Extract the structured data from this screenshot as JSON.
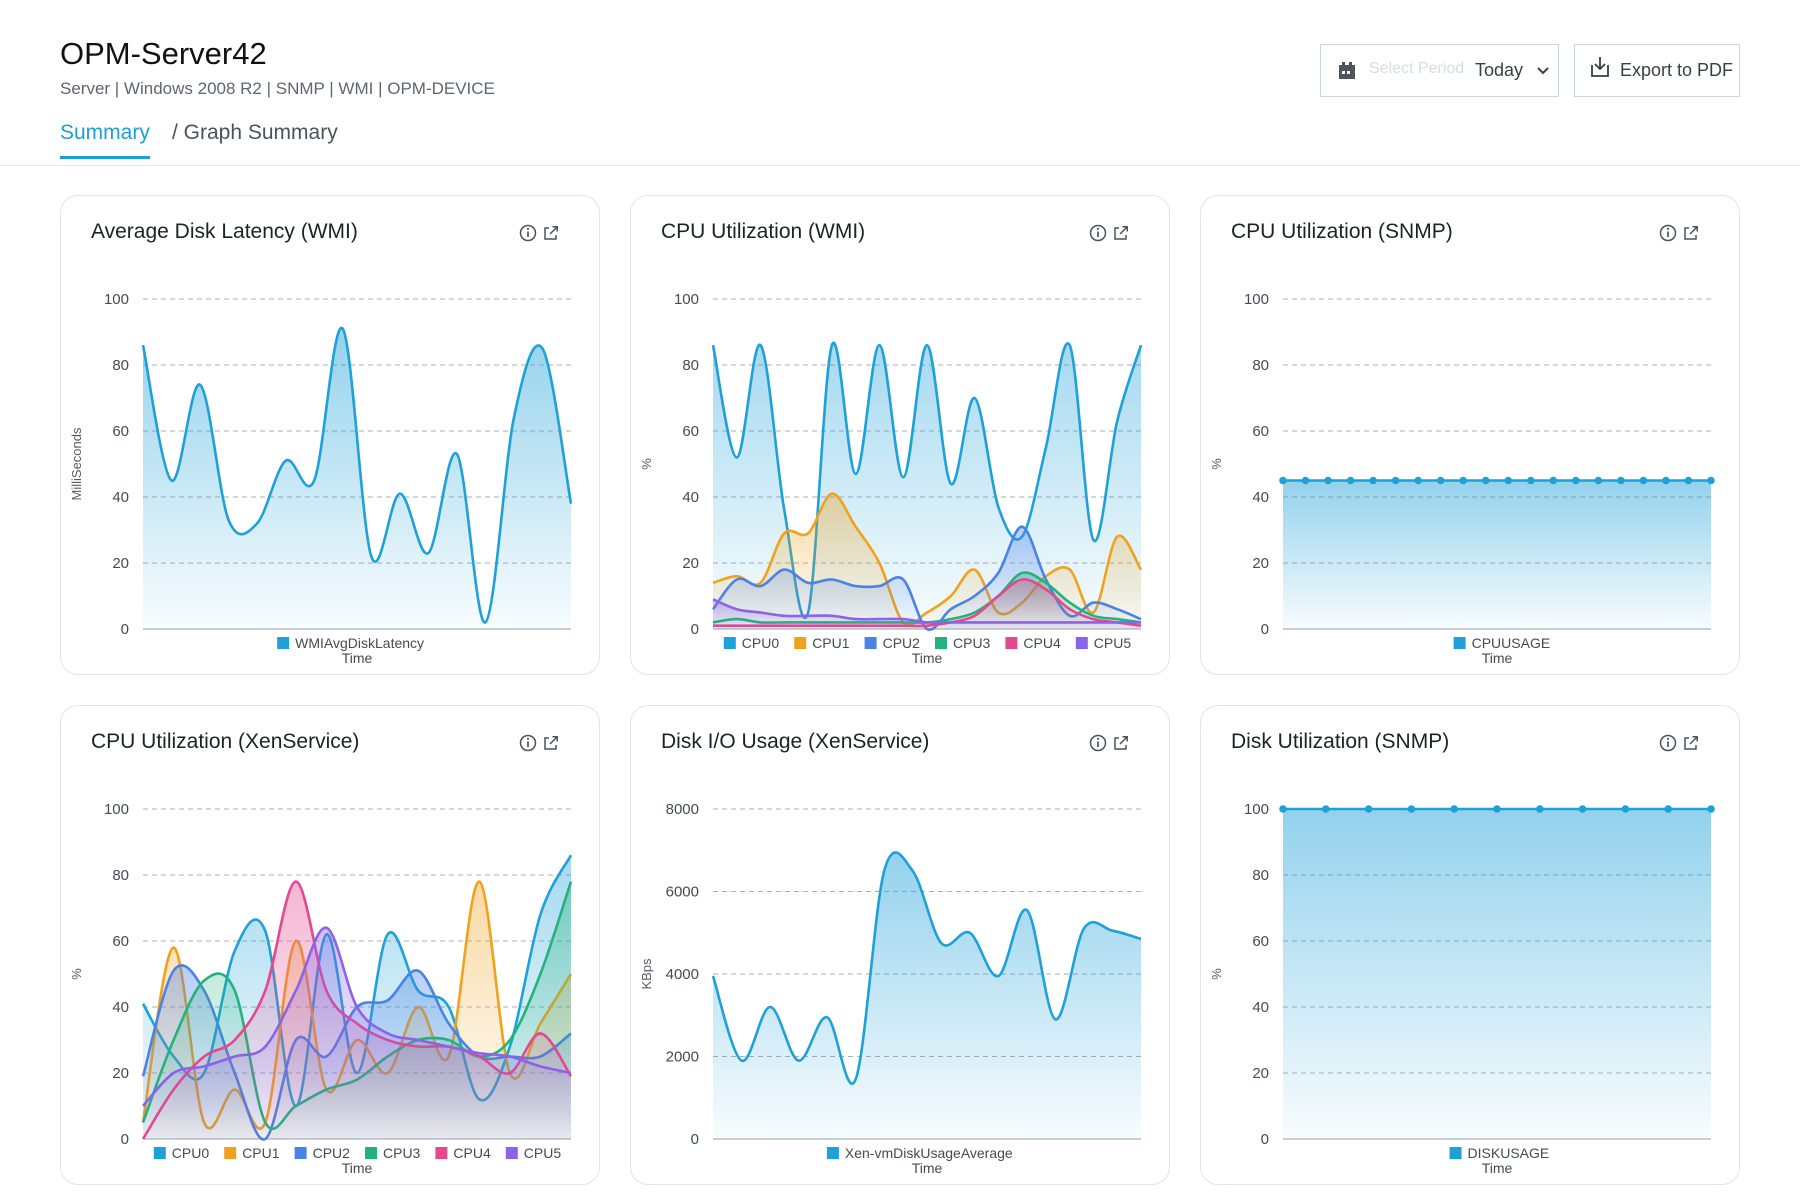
{
  "header": {
    "title": "OPM-Server42",
    "subtitle": "Server | Windows 2008 R2 | SNMP | WMI | OPM-DEVICE",
    "tabs": [
      {
        "label": "Summary",
        "active": true
      },
      {
        "label": "/ Graph Summary",
        "active": false
      }
    ],
    "period": {
      "placeholder": "Select Period",
      "value": "Today"
    },
    "export_label": "Export to PDF"
  },
  "colors": {
    "accent": "#1a9fd6",
    "series": [
      "#1ea0d8",
      "#f0a21e",
      "#4a82e6",
      "#22b37c",
      "#e4488f",
      "#8c62e8"
    ]
  },
  "cards": [
    {
      "title": "Average Disk Latency (WMI)"
    },
    {
      "title": "CPU Utilization (WMI)"
    },
    {
      "title": "CPU Utilization (SNMP)"
    },
    {
      "title": "CPU Utilization (XenService)"
    },
    {
      "title": "Disk I/O Usage (XenService)"
    },
    {
      "title": "Disk Utilization (SNMP)"
    }
  ],
  "chart_data": [
    {
      "type": "area",
      "title": "Average Disk Latency (WMI)",
      "xlabel": "Time",
      "ylabel": "MilliSeconds",
      "ylim": [
        0,
        100
      ],
      "yticks": [
        0,
        20,
        40,
        60,
        80,
        100
      ],
      "grid": true,
      "legend_position": "bottom",
      "series": [
        {
          "name": "WMIAvgDiskLatency",
          "colorIndex": 0,
          "values": [
            86,
            45,
            74,
            33,
            32,
            51,
            45,
            91,
            22,
            41,
            23,
            53,
            2,
            64,
            85,
            38
          ]
        }
      ]
    },
    {
      "type": "area",
      "title": "CPU Utilization (WMI)",
      "xlabel": "Time",
      "ylabel": "%",
      "ylim": [
        0,
        100
      ],
      "yticks": [
        0,
        20,
        40,
        60,
        80,
        100
      ],
      "grid": true,
      "legend_position": "bottom",
      "series": [
        {
          "name": "CPU0",
          "colorIndex": 0,
          "values": [
            86,
            52,
            86,
            36,
            5,
            86,
            47,
            86,
            46,
            86,
            44,
            70,
            37,
            28,
            55,
            86,
            27,
            63,
            86
          ]
        },
        {
          "name": "CPU1",
          "colorIndex": 1,
          "values": [
            14,
            16,
            14,
            29,
            29,
            41,
            31,
            20,
            2,
            5,
            10,
            18,
            5,
            8,
            16,
            18,
            5,
            28,
            18
          ]
        },
        {
          "name": "CPU2",
          "colorIndex": 2,
          "values": [
            6,
            15,
            13,
            18,
            14,
            15,
            13,
            13,
            15,
            0,
            6,
            10,
            17,
            31,
            15,
            4,
            8,
            6,
            3
          ]
        },
        {
          "name": "CPU3",
          "colorIndex": 3,
          "values": [
            2,
            3,
            2,
            2,
            2,
            2,
            2,
            2,
            2,
            2,
            3,
            5,
            10,
            17,
            14,
            8,
            4,
            3,
            2
          ]
        },
        {
          "name": "CPU4",
          "colorIndex": 4,
          "values": [
            1,
            1,
            1,
            1,
            1,
            1,
            1,
            1,
            1,
            1,
            2,
            4,
            10,
            15,
            12,
            6,
            3,
            2,
            1
          ]
        },
        {
          "name": "CPU5",
          "colorIndex": 5,
          "values": [
            9,
            6,
            5,
            4,
            4,
            4,
            3,
            3,
            3,
            2,
            2,
            2,
            2,
            2,
            2,
            2,
            2,
            2,
            2
          ]
        }
      ]
    },
    {
      "type": "area",
      "title": "CPU Utilization (SNMP)",
      "xlabel": "Time",
      "ylabel": "%",
      "ylim": [
        0,
        100
      ],
      "yticks": [
        0,
        20,
        40,
        60,
        80,
        100
      ],
      "grid": true,
      "legend_position": "bottom",
      "markers": true,
      "series": [
        {
          "name": "CPUUSAGE",
          "colorIndex": 0,
          "values": [
            45,
            45,
            45,
            45,
            45,
            45,
            45,
            45,
            45,
            45,
            45,
            45,
            45,
            45,
            45,
            45,
            45,
            45,
            45,
            45
          ]
        }
      ]
    },
    {
      "type": "area",
      "title": "CPU Utilization (XenService)",
      "xlabel": "Time",
      "ylabel": "%",
      "ylim": [
        0,
        100
      ],
      "yticks": [
        0,
        20,
        40,
        60,
        80,
        100
      ],
      "grid": true,
      "legend_position": "bottom",
      "series": [
        {
          "name": "CPU0",
          "colorIndex": 0,
          "values": [
            41,
            25,
            20,
            57,
            63,
            10,
            62,
            20,
            62,
            45,
            40,
            12,
            28,
            68,
            86
          ]
        },
        {
          "name": "CPU1",
          "colorIndex": 1,
          "values": [
            5,
            58,
            5,
            15,
            5,
            60,
            15,
            30,
            20,
            40,
            25,
            78,
            20,
            35,
            50
          ]
        },
        {
          "name": "CPU2",
          "colorIndex": 2,
          "values": [
            19,
            51,
            45,
            20,
            0,
            30,
            25,
            40,
            42,
            51,
            35,
            25,
            25,
            25,
            32
          ]
        },
        {
          "name": "CPU3",
          "colorIndex": 3,
          "values": [
            5,
            30,
            48,
            45,
            5,
            10,
            15,
            18,
            25,
            30,
            30,
            25,
            30,
            50,
            78
          ]
        },
        {
          "name": "CPU4",
          "colorIndex": 4,
          "values": [
            0,
            15,
            25,
            30,
            45,
            78,
            45,
            35,
            30,
            28,
            28,
            25,
            20,
            32,
            19
          ]
        },
        {
          "name": "CPU5",
          "colorIndex": 5,
          "values": [
            10,
            20,
            22,
            25,
            28,
            45,
            64,
            40,
            32,
            30,
            28,
            26,
            25,
            22,
            20
          ]
        }
      ]
    },
    {
      "type": "area",
      "title": "Disk I/O Usage (XenService)",
      "xlabel": "Time",
      "ylabel": "KBps",
      "ylim": [
        0,
        8000
      ],
      "yticks": [
        0,
        2000,
        4000,
        6000,
        8000
      ],
      "grid": true,
      "legend_position": "bottom",
      "series": [
        {
          "name": "Xen-vmDiskUsageAverage",
          "colorIndex": 0,
          "values": [
            3950,
            1900,
            3200,
            1900,
            2950,
            1450,
            6500,
            6500,
            4750,
            5000,
            3950,
            5550,
            2900,
            5100,
            5050,
            4850
          ]
        }
      ]
    },
    {
      "type": "area",
      "title": "Disk Utilization (SNMP)",
      "xlabel": "Time",
      "ylabel": "%",
      "ylim": [
        0,
        100
      ],
      "yticks": [
        0,
        20,
        40,
        60,
        80,
        100
      ],
      "grid": true,
      "legend_position": "bottom",
      "markers": true,
      "series": [
        {
          "name": "DISKUSAGE",
          "colorIndex": 0,
          "values": [
            100,
            100,
            100,
            100,
            100,
            100,
            100,
            100,
            100,
            100,
            100
          ]
        }
      ]
    }
  ]
}
